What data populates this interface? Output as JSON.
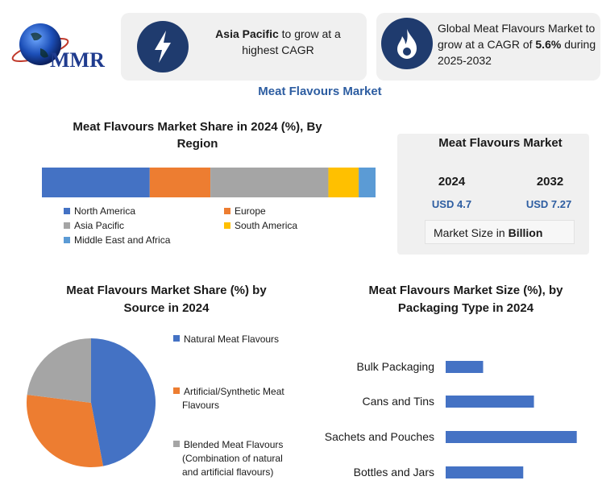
{
  "logo": {
    "text": "MMR"
  },
  "header": {
    "card1": {
      "bold": "Asia Pacific",
      "rest": " to grow at a highest CAGR"
    },
    "card2": {
      "pre": "Global Meat Flavours Market to grow at a CAGR of ",
      "bold": "5.6%",
      "post": " during 2025-2032"
    }
  },
  "page_title": "Meat Flavours Market",
  "colors": {
    "accent": "#1f3b6e",
    "blue_title": "#2d5da1"
  },
  "market_box": {
    "title": "Meat Flavours Market",
    "year1": "2024",
    "value1": "USD 4.7",
    "year2": "2032",
    "value2": "USD 7.27",
    "size_pre": "Market Size in ",
    "size_bold": "Billion"
  },
  "chart_data": [
    {
      "type": "bar",
      "orientation": "stacked-horizontal",
      "title": "Meat Flavours Market Share in 2024 (%), By Region",
      "series": [
        {
          "name": "North America",
          "value": 32,
          "color": "#4472c4"
        },
        {
          "name": "Europe",
          "value": 18,
          "color": "#ed7d31"
        },
        {
          "name": "Asia Pacific",
          "value": 35,
          "color": "#a5a5a5"
        },
        {
          "name": "South America",
          "value": 9,
          "color": "#ffc000"
        },
        {
          "name": "Middle East and Africa",
          "value": 5,
          "color": "#5b9bd5"
        }
      ]
    },
    {
      "type": "pie",
      "title": "Meat Flavours Market  Share (%) by Source in 2024",
      "slices": [
        {
          "name": "Natural Meat Flavours",
          "value": 47,
          "color": "#4472c4"
        },
        {
          "name": "Artificial/Synthetic Meat Flavours",
          "value": 30,
          "color": "#ed7d31"
        },
        {
          "name": "Blended Meat Flavours (Combination of natural and artificial flavours)",
          "value": 23,
          "color": "#a5a5a5"
        }
      ],
      "legend_lines": [
        [
          "Natural Meat Flavours"
        ],
        [
          "Artificial/Synthetic Meat",
          "Flavours"
        ],
        [
          "Blended Meat Flavours",
          "(Combination of natural",
          "and artificial flavours)"
        ]
      ]
    },
    {
      "type": "bar",
      "orientation": "horizontal",
      "title": "Meat Flavours Market Size (%), by Packaging Type in 2024",
      "categories": [
        "Bulk Packaging",
        "Cans and Tins",
        "Sachets and Pouches",
        "Bottles and Jars"
      ],
      "values": [
        14,
        33,
        49,
        29
      ],
      "xlim": [
        0,
        50
      ],
      "color": "#4472c4"
    }
  ]
}
